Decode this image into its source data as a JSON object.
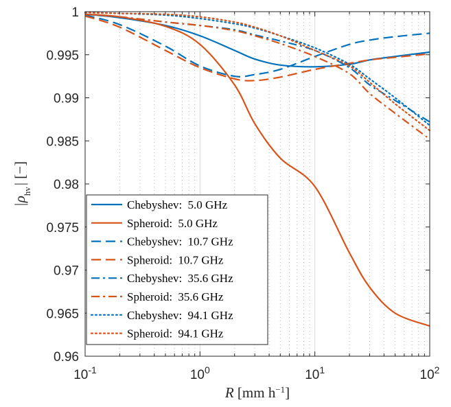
{
  "chart_data": {
    "type": "line",
    "title": "",
    "xlabel_main": "R",
    "xlabel_unit": "[mm h",
    "xlabel_exp": "−1",
    "xlabel_close": "]",
    "ylabel_main": "|ρ",
    "ylabel_sub": "hv",
    "ylabel_unit": "| [−]",
    "xscale": "log",
    "xlim": [
      0.1,
      100
    ],
    "ylim": [
      0.96,
      1.0
    ],
    "grid": "x-only (major solid, minor dotted)",
    "legend_position": "bottom-left",
    "x_ticks": [
      {
        "base": "10",
        "exp": "-1"
      },
      {
        "base": "10",
        "exp": "0"
      },
      {
        "base": "10",
        "exp": "1"
      },
      {
        "base": "10",
        "exp": "2"
      }
    ],
    "y_ticks": [
      "0.96",
      "0.965",
      "0.97",
      "0.975",
      "0.98",
      "0.985",
      "0.99",
      "0.995",
      "1"
    ],
    "y_tick_values": [
      0.96,
      0.965,
      0.97,
      0.975,
      0.98,
      0.985,
      0.99,
      0.995,
      1.0
    ],
    "x": [
      0.1,
      0.2,
      0.5,
      1,
      2,
      3,
      5,
      10,
      20,
      30,
      50,
      100
    ],
    "series": [
      {
        "name": "Chebyshev:",
        "freq": "5.0 GHz",
        "color": "#0072BD",
        "style": "solid",
        "values": [
          0.9997,
          0.9993,
          0.9984,
          0.9972,
          0.9955,
          0.9945,
          0.9938,
          0.9936,
          0.9939,
          0.9944,
          0.9948,
          0.9953
        ]
      },
      {
        "name": "Spheroid:",
        "freq": "5.0 GHz",
        "color": "#D95319",
        "style": "solid",
        "values": [
          0.9997,
          0.9994,
          0.9983,
          0.9962,
          0.9915,
          0.987,
          0.983,
          0.9797,
          0.972,
          0.968,
          0.965,
          0.9635
        ]
      },
      {
        "name": "Chebyshev:",
        "freq": "10.7 GHz",
        "color": "#0072BD",
        "style": "dash",
        "values": [
          0.9996,
          0.9985,
          0.996,
          0.9937,
          0.9925,
          0.9927,
          0.9933,
          0.9948,
          0.9962,
          0.9967,
          0.9971,
          0.9975
        ]
      },
      {
        "name": "Spheroid:",
        "freq": "10.7 GHz",
        "color": "#D95319",
        "style": "dash",
        "values": [
          0.9995,
          0.9982,
          0.9955,
          0.9935,
          0.9922,
          0.992,
          0.9924,
          0.9933,
          0.994,
          0.9944,
          0.9947,
          0.9951
        ]
      },
      {
        "name": "Chebyshev:",
        "freq": "35.6 GHz",
        "color": "#0072BD",
        "style": "dashdot",
        "values": [
          0.9997,
          0.9994,
          0.9988,
          0.9984,
          0.9979,
          0.9973,
          0.9966,
          0.9955,
          0.9935,
          0.9915,
          0.9897,
          0.9872
        ]
      },
      {
        "name": "Spheroid:",
        "freq": "35.6 GHz",
        "color": "#D95319",
        "style": "dashdot",
        "values": [
          0.9997,
          0.9994,
          0.9988,
          0.9984,
          0.9978,
          0.9972,
          0.9963,
          0.9948,
          0.9928,
          0.9905,
          0.9882,
          0.9852
        ]
      },
      {
        "name": "Chebyshev:",
        "freq": "94.1 GHz",
        "color": "#0072BD",
        "style": "dot",
        "values": [
          0.9999,
          0.9998,
          0.9996,
          0.9992,
          0.9986,
          0.9981,
          0.9972,
          0.9958,
          0.9939,
          0.9922,
          0.99,
          0.9868
        ]
      },
      {
        "name": "Spheroid:",
        "freq": "94.1 GHz",
        "color": "#D95319",
        "style": "dot",
        "values": [
          0.9999,
          0.9998,
          0.9997,
          0.9994,
          0.9988,
          0.9982,
          0.9972,
          0.9955,
          0.9937,
          0.9918,
          0.9893,
          0.9862
        ]
      }
    ]
  }
}
